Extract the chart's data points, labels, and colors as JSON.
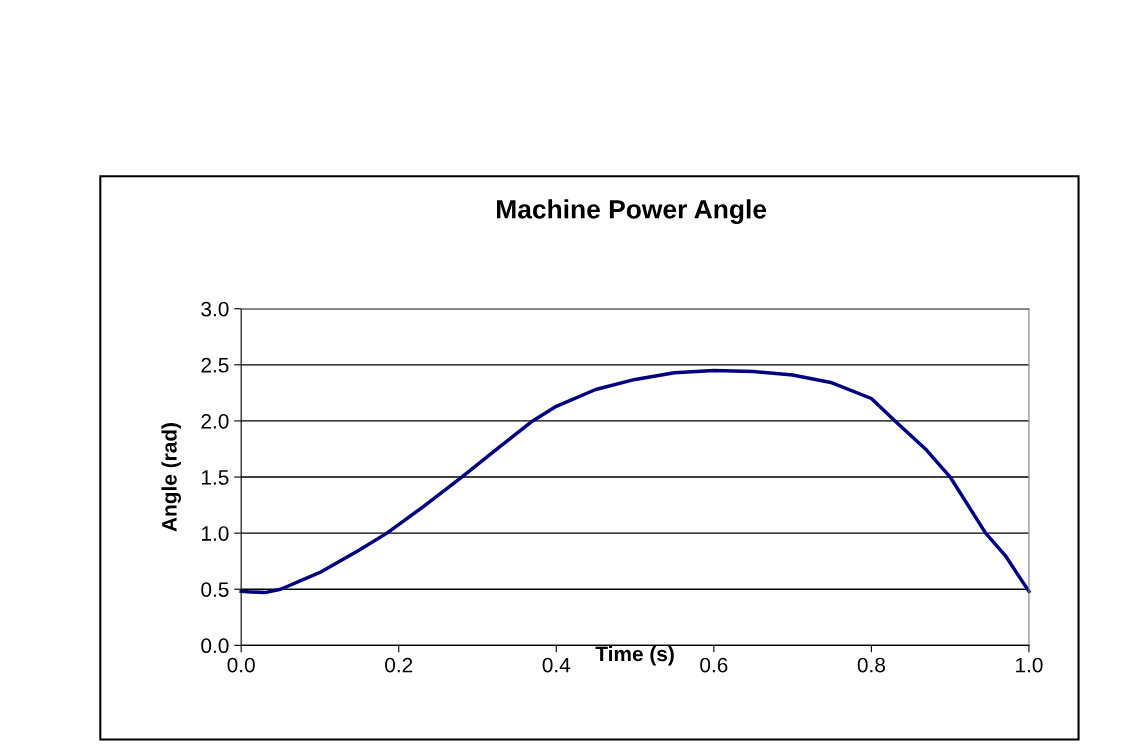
{
  "chart_data": {
    "type": "line",
    "title": "Machine Power Angle",
    "xlabel": "Time (s)",
    "ylabel": "Angle (rad)",
    "xlim": [
      0,
      1
    ],
    "xticks": [
      {
        "value": 0,
        "label": "0.0"
      },
      {
        "value": 0.2,
        "label": "0.2"
      },
      {
        "value": 0.4,
        "label": "0.4"
      },
      {
        "value": 0.6,
        "label": "0.6"
      },
      {
        "value": 0.8,
        "label": "0.8"
      },
      {
        "value": 1,
        "label": "1.0"
      }
    ],
    "ylim": [
      0,
      3
    ],
    "yticks": [
      {
        "value": 0,
        "label": "0.0"
      },
      {
        "value": 0.5,
        "label": "0.5"
      },
      {
        "value": 1,
        "label": "1.0"
      },
      {
        "value": 1.5,
        "label": "1.5"
      },
      {
        "value": 2,
        "label": "2.0"
      },
      {
        "value": 2.5,
        "label": "2.5"
      },
      {
        "value": 3,
        "label": "3.0"
      }
    ],
    "grid": "y",
    "legend": false,
    "marker": "none",
    "line_style": "solid",
    "x": [
      0,
      0.03,
      0.05,
      0.1,
      0.15,
      0.185,
      0.23,
      0.28,
      0.33,
      0.37,
      0.4,
      0.45,
      0.5,
      0.55,
      0.6,
      0.65,
      0.7,
      0.75,
      0.8,
      0.83,
      0.87,
      0.9,
      0.945,
      0.97,
      1.0
    ],
    "series": [
      {
        "color": "#000080",
        "values": [
          0.48,
          0.47,
          0.5,
          0.65,
          0.85,
          1.0,
          1.23,
          1.5,
          1.78,
          2.0,
          2.13,
          2.28,
          2.37,
          2.43,
          2.45,
          2.44,
          2.41,
          2.34,
          2.2,
          2.0,
          1.74,
          1.5,
          1.0,
          0.8,
          0.48
        ]
      }
    ]
  }
}
